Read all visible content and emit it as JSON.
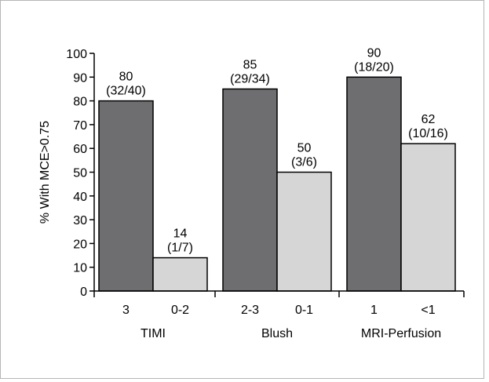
{
  "chart_data": {
    "type": "bar",
    "ylabel": "% With MCE>0.75",
    "ylim": [
      0,
      100
    ],
    "yticks": [
      0,
      10,
      20,
      30,
      40,
      50,
      60,
      70,
      80,
      90,
      100
    ],
    "grid": false,
    "groups": [
      {
        "label": "TIMI",
        "bars": [
          {
            "category": "3",
            "value": 80,
            "label": "80",
            "sublabel": "(32/40)",
            "shade": "dark"
          },
          {
            "category": "0-2",
            "value": 14,
            "label": "14",
            "sublabel": "(1/7)",
            "shade": "light"
          }
        ]
      },
      {
        "label": "Blush",
        "bars": [
          {
            "category": "2-3",
            "value": 85,
            "label": "85",
            "sublabel": "(29/34)",
            "shade": "dark"
          },
          {
            "category": "0-1",
            "value": 50,
            "label": "50",
            "sublabel": "(3/6)",
            "shade": "light"
          }
        ]
      },
      {
        "label": "MRI-Perfusion",
        "bars": [
          {
            "category": "1",
            "value": 90,
            "label": "90",
            "sublabel": "(18/20)",
            "shade": "dark"
          },
          {
            "category": "<1",
            "value": 62,
            "label": "62",
            "sublabel": "(10/16)",
            "shade": "light"
          }
        ]
      }
    ],
    "colors": {
      "dark": "#6e6e70",
      "light": "#d6d6d6",
      "stroke": "#000000"
    }
  }
}
